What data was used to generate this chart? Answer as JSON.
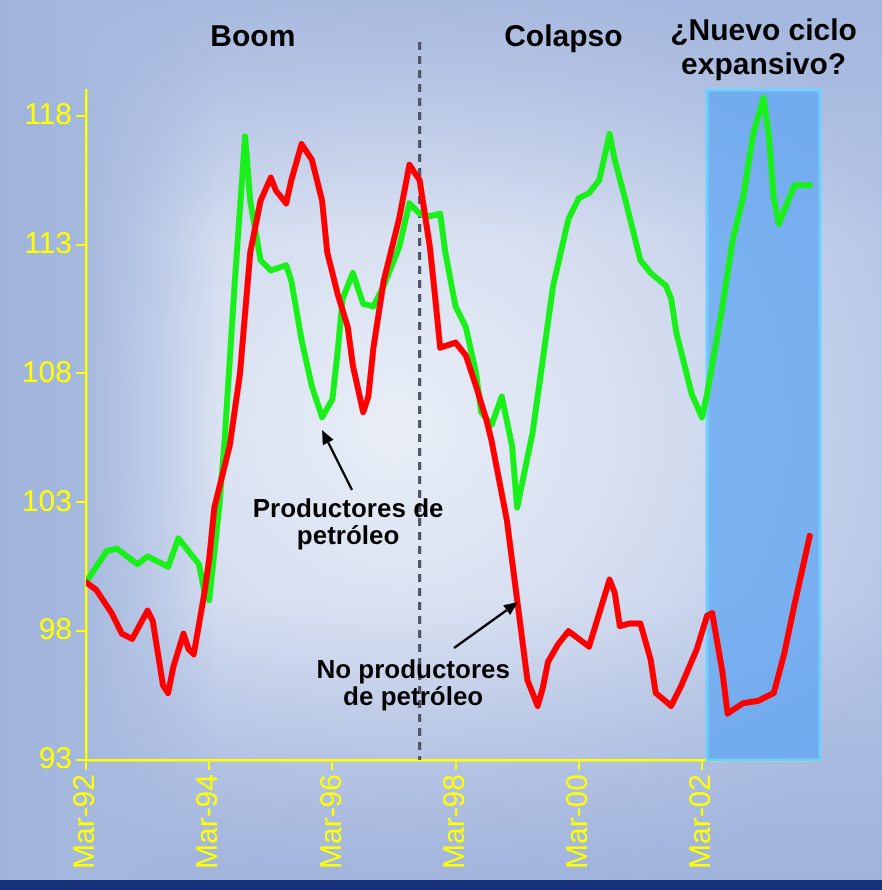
{
  "chart_data": {
    "type": "line",
    "xlim": [
      "1992-03",
      "2004-02"
    ],
    "xticks": [
      {
        "value": "1992-03",
        "label": "Mar-92"
      },
      {
        "value": "1994-03",
        "label": "Mar-94"
      },
      {
        "value": "1996-03",
        "label": "Mar-96"
      },
      {
        "value": "1998-03",
        "label": "Mar-98"
      },
      {
        "value": "2000-03",
        "label": "Mar-00"
      },
      {
        "value": "2002-03",
        "label": "Mar-02"
      }
    ],
    "ylim": [
      93,
      119
    ],
    "yticks": [
      93,
      98,
      103,
      108,
      113,
      118
    ],
    "series": [
      {
        "color": "#19ef19",
        "x": [
          "1992-03",
          "1992-07",
          "1992-09",
          "1993-01",
          "1993-03",
          "1993-07",
          "1993-09",
          "1994-01",
          "1994-02",
          "1994-03",
          "1994-05",
          "1994-06",
          "1994-08",
          "1994-10",
          "1994-11",
          "1995-01",
          "1995-03",
          "1995-06",
          "1995-07",
          "1995-09",
          "1995-11",
          "1996-01",
          "1996-03",
          "1996-04",
          "1996-05",
          "1996-07",
          "1996-09",
          "1996-11",
          "1997-01",
          "1997-04",
          "1997-06",
          "1997-08",
          "1997-10",
          "1997-12",
          "1998-01",
          "1998-03",
          "1998-05",
          "1998-07",
          "1998-08",
          "1998-10",
          "1998-12",
          "1999-02",
          "1999-03",
          "1999-06",
          "1999-10",
          "2000-01",
          "2000-03",
          "2000-05",
          "2000-07",
          "2000-09",
          "2000-10",
          "2000-12",
          "2001-03",
          "2001-05",
          "2001-08",
          "2001-09",
          "2001-10",
          "2002-01",
          "2002-03",
          "2002-04",
          "2002-07",
          "2002-09",
          "2002-11",
          "2003-01",
          "2003-03",
          "2003-04",
          "2003-05",
          "2003-06",
          "2003-08",
          "2003-09",
          "2003-12"
        ],
        "values": [
          99.9,
          101.1,
          101.2,
          100.6,
          100.9,
          100.5,
          101.6,
          100.6,
          99.6,
          99.2,
          102.9,
          105.4,
          111.6,
          117.2,
          114.7,
          112.4,
          112.0,
          112.2,
          111.6,
          109.3,
          107.5,
          106.3,
          107.0,
          108.8,
          110.9,
          111.9,
          110.7,
          110.6,
          111.4,
          112.9,
          114.6,
          114.2,
          114.1,
          114.2,
          112.7,
          110.6,
          109.8,
          108.0,
          106.5,
          106.0,
          107.1,
          105.2,
          102.8,
          105.7,
          111.4,
          114.0,
          114.8,
          115.0,
          115.5,
          117.3,
          116.3,
          114.8,
          112.4,
          111.9,
          111.4,
          110.9,
          109.6,
          107.2,
          106.3,
          107.2,
          110.6,
          113.2,
          114.8,
          117.3,
          118.7,
          117.3,
          114.8,
          113.8,
          114.8,
          115.3,
          115.3
        ]
      },
      {
        "color": "#ff0000",
        "x": [
          "1992-03",
          "1992-05",
          "1992-08",
          "1992-10",
          "1992-12",
          "1993-03",
          "1993-04",
          "1993-06",
          "1993-07",
          "1993-08",
          "1993-10",
          "1993-11",
          "1993-12",
          "1994-02",
          "1994-03",
          "1994-04",
          "1994-07",
          "1994-09",
          "1994-11",
          "1995-01",
          "1995-03",
          "1995-04",
          "1995-06",
          "1995-07",
          "1995-09",
          "1995-11",
          "1996-01",
          "1996-02",
          "1996-04",
          "1996-06",
          "1996-07",
          "1996-09",
          "1996-10",
          "1996-11",
          "1997-01",
          "1997-04",
          "1997-06",
          "1997-08",
          "1997-10",
          "1997-11",
          "1997-12",
          "1998-03",
          "1998-05",
          "1998-07",
          "1998-09",
          "1998-10",
          "1999-01",
          "1999-03",
          "1999-05",
          "1999-07",
          "1999-08",
          "1999-09",
          "1999-11",
          "2000-01",
          "2000-03",
          "2000-05",
          "2000-07",
          "2000-09",
          "2000-10",
          "2000-11",
          "2001-01",
          "2001-03",
          "2001-05",
          "2001-06",
          "2001-09",
          "2001-11",
          "2002-02",
          "2002-04",
          "2002-05",
          "2002-07",
          "2002-08",
          "2002-11",
          "2003-02",
          "2003-05",
          "2003-07",
          "2003-09",
          "2003-12"
        ],
        "values": [
          99.9,
          99.6,
          98.7,
          97.9,
          97.7,
          98.8,
          98.4,
          95.9,
          95.6,
          96.6,
          97.9,
          97.3,
          97.1,
          99.4,
          100.8,
          102.8,
          105.2,
          108.0,
          112.7,
          114.7,
          115.6,
          115.1,
          114.6,
          115.5,
          116.9,
          116.3,
          114.7,
          112.7,
          111.1,
          109.8,
          108.3,
          106.5,
          107.1,
          109.0,
          111.6,
          114.0,
          116.1,
          115.5,
          112.9,
          111.0,
          109.0,
          109.2,
          108.7,
          107.5,
          106.2,
          105.4,
          102.3,
          99.2,
          96.1,
          95.1,
          95.8,
          96.8,
          97.5,
          98.0,
          97.7,
          97.4,
          98.7,
          100.0,
          99.5,
          98.2,
          98.3,
          98.3,
          96.9,
          95.6,
          95.1,
          95.9,
          97.3,
          98.6,
          98.7,
          96.4,
          94.8,
          95.2,
          95.3,
          95.6,
          97.1,
          99.0,
          101.7
        ]
      }
    ],
    "ref_lines": [
      {
        "axis": "x",
        "value": "1997-08",
        "color": "#4f5666",
        "line_style": "dashed"
      }
    ],
    "bands": [
      {
        "axis": "x",
        "from": "2002-04",
        "to": "2004-02",
        "label": "¿Nuevo ciclo expansivo?",
        "color": "#5ca4f2"
      }
    ],
    "annotations": [
      "Boom",
      "Colapso",
      {
        "text": "Productores de petróleo",
        "x": "1996-01",
        "y": 105.8
      },
      {
        "text": "No productores de petróleo",
        "x": "1999-03",
        "y": 99.1
      }
    ]
  }
}
